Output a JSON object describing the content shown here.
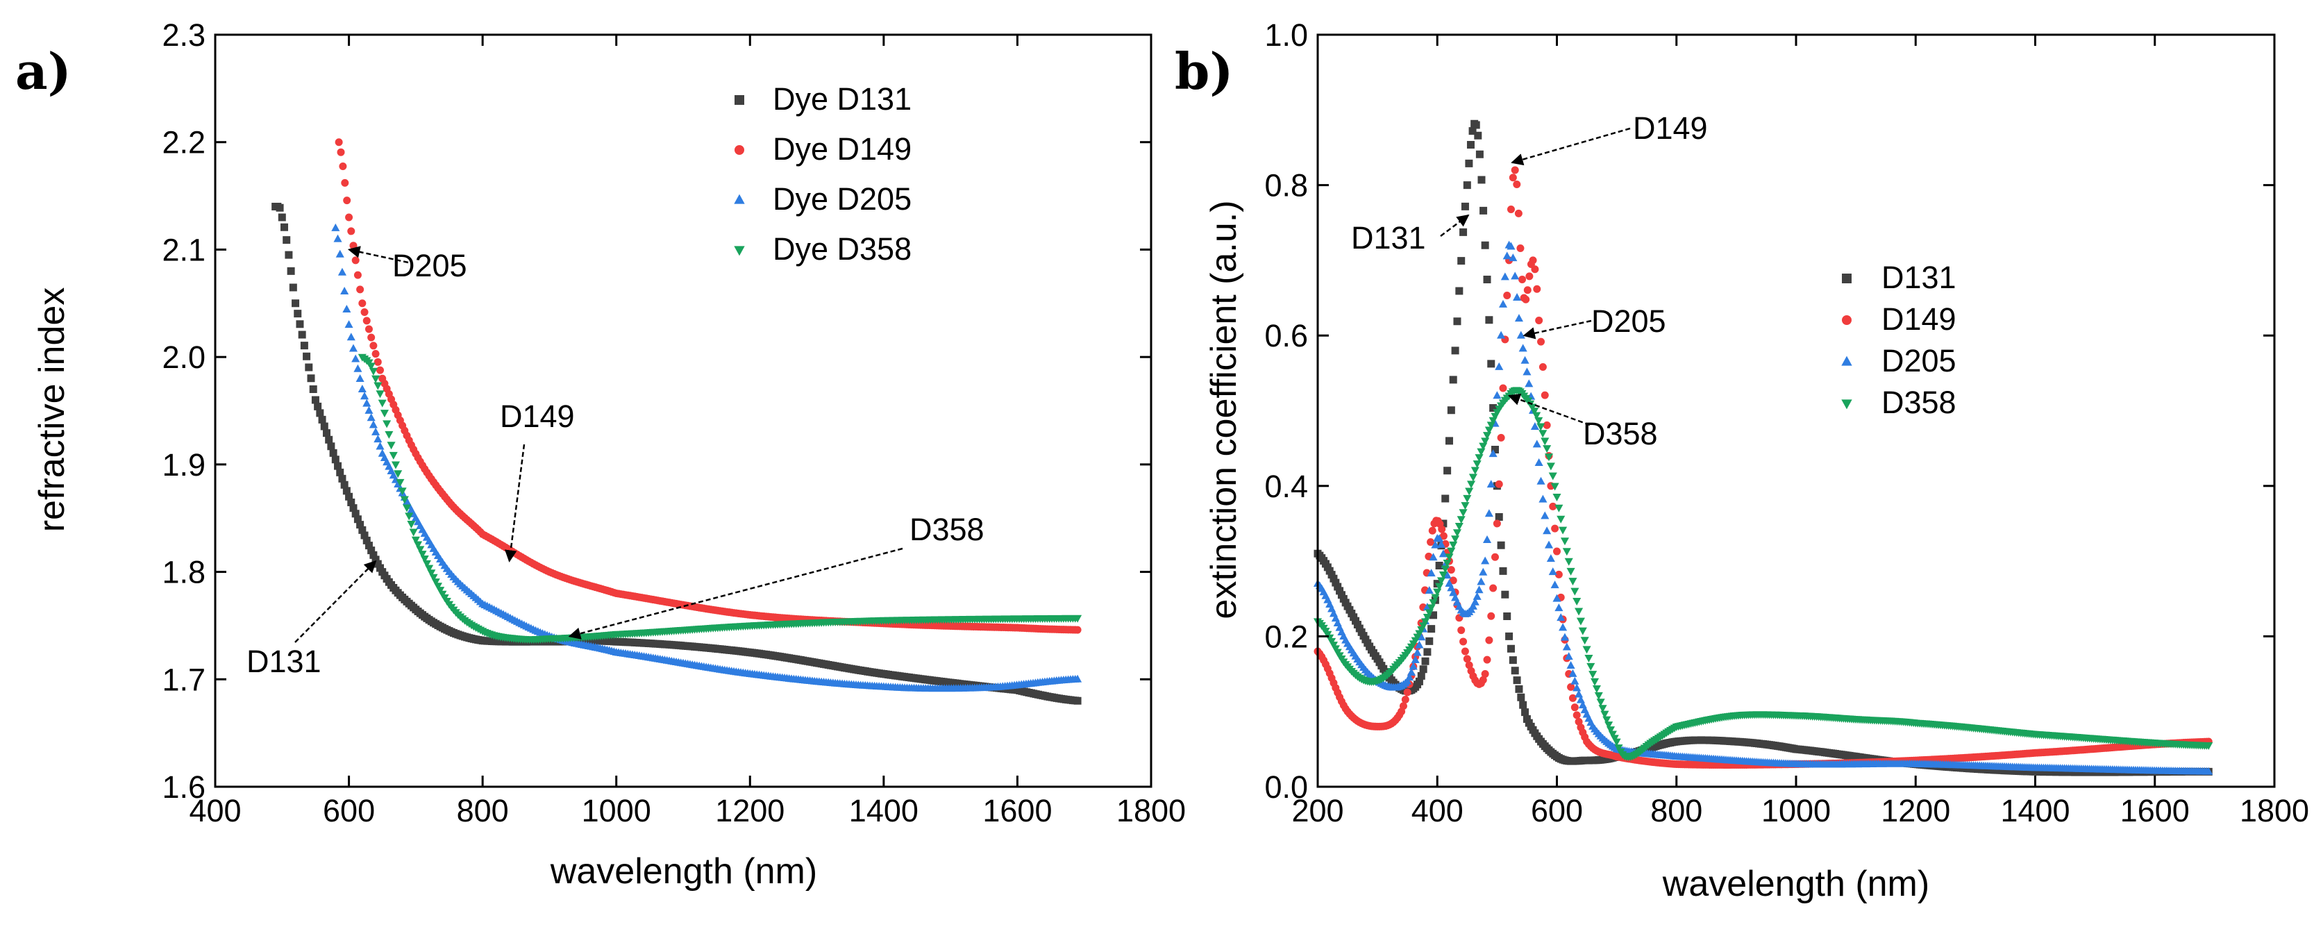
{
  "chart_data": [
    {
      "panel": "a)",
      "type": "scatter",
      "xlabel": "wavelength (nm)",
      "ylabel": "refractive index",
      "xlim": [
        400,
        1800
      ],
      "ylim": [
        1.6,
        2.3
      ],
      "xticks": [
        400,
        600,
        800,
        1000,
        1200,
        1400,
        1600,
        1800
      ],
      "yticks": [
        1.6,
        1.7,
        1.8,
        1.9,
        2.0,
        2.1,
        2.2,
        2.3
      ],
      "legend_position": "top-right",
      "series": [
        {
          "name": "Dye D131",
          "color": "#404040",
          "marker": "square",
          "x": [
            490,
            500,
            520,
            550,
            600,
            650,
            700,
            750,
            800,
            900,
            1000,
            1200,
            1400,
            1600,
            1690
          ],
          "y": [
            2.14,
            2.13,
            2.05,
            1.96,
            1.87,
            1.8,
            1.765,
            1.745,
            1.736,
            1.735,
            1.735,
            1.725,
            1.705,
            1.69,
            1.68
          ]
        },
        {
          "name": "Dye D149",
          "color": "#f03c3c",
          "marker": "circle",
          "x": [
            585,
            600,
            620,
            650,
            700,
            750,
            800,
            900,
            1000,
            1200,
            1400,
            1600,
            1690
          ],
          "y": [
            2.2,
            2.13,
            2.05,
            1.98,
            1.91,
            1.865,
            1.835,
            1.8,
            1.78,
            1.76,
            1.752,
            1.748,
            1.746
          ]
        },
        {
          "name": "Dye D205",
          "color": "#2f7de1",
          "marker": "triangle-up",
          "x": [
            580,
            600,
            620,
            650,
            700,
            750,
            800,
            900,
            1000,
            1200,
            1400,
            1550,
            1690
          ],
          "y": [
            2.12,
            2.03,
            1.97,
            1.91,
            1.85,
            1.8,
            1.77,
            1.74,
            1.725,
            1.705,
            1.693,
            1.692,
            1.7
          ]
        },
        {
          "name": "Dye D358",
          "color": "#19a35c",
          "marker": "triangle-down",
          "x": [
            620,
            640,
            670,
            700,
            750,
            800,
            850,
            900,
            1000,
            1200,
            1400,
            1690
          ],
          "y": [
            2.0,
            1.98,
            1.9,
            1.83,
            1.77,
            1.745,
            1.738,
            1.738,
            1.742,
            1.75,
            1.755,
            1.757
          ]
        }
      ],
      "annotations": [
        {
          "text": "D205",
          "target_x": 600,
          "target_y": 2.1
        },
        {
          "text": "D149",
          "target_x": 840,
          "target_y": 1.81
        },
        {
          "text": "D358",
          "target_x": 930,
          "target_y": 1.74
        },
        {
          "text": "D131",
          "target_x": 640,
          "target_y": 1.81
        }
      ]
    },
    {
      "panel": "b)",
      "type": "scatter",
      "xlabel": "wavelength (nm)",
      "ylabel": "extinction coefficient (a.u.)",
      "xlim": [
        200,
        1800
      ],
      "ylim": [
        0.0,
        1.0
      ],
      "xticks": [
        200,
        400,
        600,
        800,
        1000,
        1200,
        1400,
        1600,
        1800
      ],
      "yticks": [
        0.0,
        0.2,
        0.4,
        0.6,
        0.8,
        1.0
      ],
      "legend_position": "right",
      "series": [
        {
          "name": "D131",
          "color": "#404040",
          "marker": "square",
          "x": [
            200,
            250,
            300,
            340,
            370,
            390,
            410,
            430,
            450,
            465,
            480,
            500,
            520,
            550,
            600,
            650,
            700,
            800,
            900,
            1000,
            1200,
            1400,
            1690
          ],
          "y": [
            0.31,
            0.24,
            0.17,
            0.13,
            0.14,
            0.21,
            0.35,
            0.58,
            0.8,
            0.88,
            0.72,
            0.4,
            0.2,
            0.09,
            0.04,
            0.035,
            0.04,
            0.06,
            0.06,
            0.05,
            0.03,
            0.02,
            0.02
          ]
        },
        {
          "name": "D149",
          "color": "#f03c3c",
          "marker": "circle",
          "x": [
            200,
            250,
            300,
            340,
            370,
            395,
            420,
            450,
            480,
            500,
            520,
            530,
            545,
            560,
            570,
            590,
            620,
            650,
            700,
            800,
            1000,
            1200,
            1400,
            1690
          ],
          "y": [
            0.18,
            0.1,
            0.08,
            0.1,
            0.2,
            0.35,
            0.3,
            0.17,
            0.15,
            0.35,
            0.7,
            0.82,
            0.65,
            0.7,
            0.62,
            0.4,
            0.15,
            0.06,
            0.04,
            0.03,
            0.03,
            0.035,
            0.045,
            0.06
          ]
        },
        {
          "name": "D205",
          "color": "#2f7de1",
          "marker": "triangle-up",
          "x": [
            200,
            250,
            300,
            350,
            380,
            400,
            420,
            450,
            480,
            500,
            520,
            540,
            560,
            580,
            600,
            630,
            660,
            700,
            800,
            1000,
            1200,
            1400,
            1690
          ],
          "y": [
            0.27,
            0.19,
            0.14,
            0.14,
            0.22,
            0.33,
            0.27,
            0.23,
            0.3,
            0.52,
            0.72,
            0.6,
            0.5,
            0.36,
            0.25,
            0.14,
            0.08,
            0.05,
            0.04,
            0.03,
            0.03,
            0.025,
            0.02
          ]
        },
        {
          "name": "D358",
          "color": "#19a35c",
          "marker": "triangle-down",
          "x": [
            200,
            250,
            290,
            330,
            380,
            430,
            480,
            520,
            545,
            580,
            620,
            660,
            700,
            720,
            760,
            800,
            900,
            1000,
            1100,
            1200,
            1400,
            1690
          ],
          "y": [
            0.22,
            0.16,
            0.14,
            0.16,
            0.22,
            0.33,
            0.46,
            0.52,
            0.52,
            0.46,
            0.3,
            0.15,
            0.06,
            0.04,
            0.06,
            0.08,
            0.095,
            0.095,
            0.09,
            0.085,
            0.07,
            0.055
          ]
        }
      ],
      "annotations": [
        {
          "text": "D149",
          "target_x": 525,
          "target_y": 0.83
        },
        {
          "text": "D131",
          "target_x": 452,
          "target_y": 0.76
        },
        {
          "text": "D205",
          "target_x": 545,
          "target_y": 0.6
        },
        {
          "text": "D358",
          "target_x": 520,
          "target_y": 0.52
        }
      ]
    }
  ]
}
